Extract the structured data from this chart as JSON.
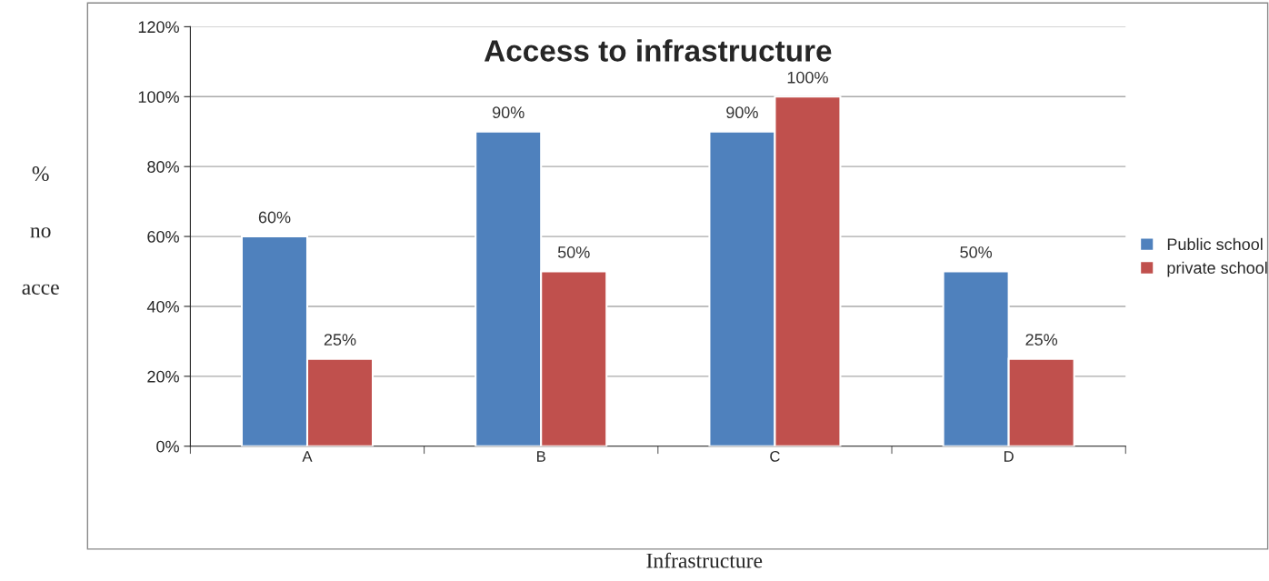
{
  "chart_data": {
    "type": "bar",
    "title": "Access to infrastructure",
    "xlabel": "Infrastructure",
    "ylabel": "%\n\nno\n\nacce",
    "categories": [
      "A",
      "B",
      "C",
      "D"
    ],
    "series": [
      {
        "name": "Public school",
        "color": "#4f81bd",
        "values": [
          60,
          90,
          90,
          50
        ],
        "value_labels": [
          "60%",
          "90%",
          "90%",
          "50%"
        ]
      },
      {
        "name": "private school",
        "color": "#c0504d",
        "values": [
          25,
          50,
          100,
          25
        ],
        "value_labels": [
          "25%",
          "50%",
          "100%",
          "25%"
        ]
      }
    ],
    "ylim": [
      0,
      120
    ],
    "yticks": [
      {
        "value": 0,
        "label": "0%"
      },
      {
        "value": 20,
        "label": "20%"
      },
      {
        "value": 40,
        "label": "40%"
      },
      {
        "value": 60,
        "label": "60%"
      },
      {
        "value": 80,
        "label": "80%"
      },
      {
        "value": 100,
        "label": "100%"
      },
      {
        "value": 120,
        "label": "120%"
      }
    ],
    "grid": "y",
    "legend": "right"
  }
}
